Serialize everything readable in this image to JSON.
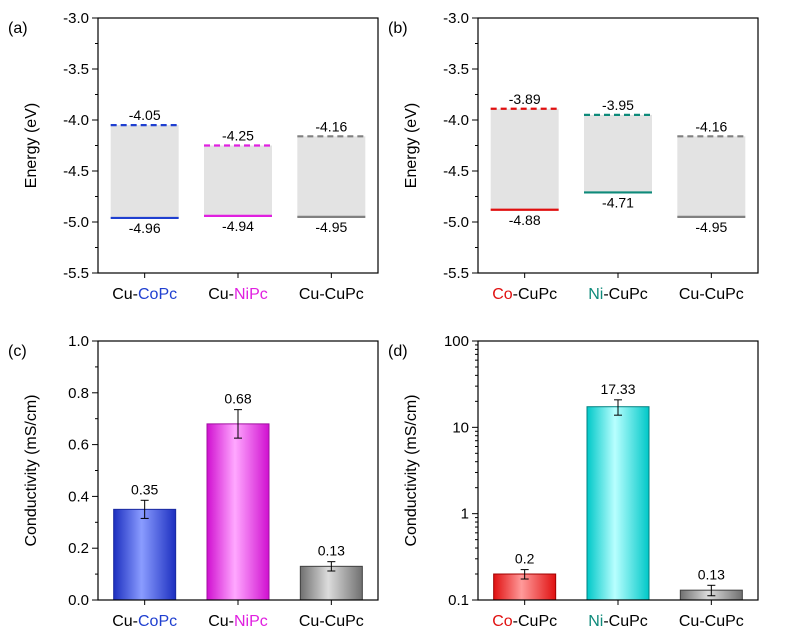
{
  "chart_data": [
    {
      "panel": "(a)",
      "type": "energy-level",
      "ylabel": "Energy (eV)",
      "ylim": [
        -5.5,
        -3.0
      ],
      "yticks": [
        "-3.0",
        "-3.5",
        "-4.0",
        "-4.5",
        "-5.0",
        "-5.5"
      ],
      "categories": [
        {
          "prefix": "Cu-",
          "highlight": "CoPc",
          "suffix": "",
          "color": "#1f3fd0"
        },
        {
          "prefix": "Cu-",
          "highlight": "NiPc",
          "suffix": "",
          "color": "#e020e0"
        },
        {
          "prefix": "Cu-CuPc",
          "highlight": "",
          "suffix": "",
          "color": "#808080"
        }
      ],
      "top": [
        -4.05,
        -4.25,
        -4.16
      ],
      "bottom": [
        -4.96,
        -4.94,
        -4.95
      ],
      "top_labels": [
        "-4.05",
        "-4.25",
        "-4.16"
      ],
      "bottom_labels": [
        "-4.96",
        "-4.94",
        "-4.95"
      ]
    },
    {
      "panel": "(b)",
      "type": "energy-level",
      "ylabel": "Energy (eV)",
      "ylim": [
        -5.5,
        -3.0
      ],
      "yticks": [
        "-3.0",
        "-3.5",
        "-4.0",
        "-4.5",
        "-5.0",
        "-5.5"
      ],
      "categories": [
        {
          "prefix": "",
          "highlight": "Co",
          "suffix": "-CuPc",
          "color": "#e01010"
        },
        {
          "prefix": "",
          "highlight": "Ni",
          "suffix": "-CuPc",
          "color": "#0e8a7a"
        },
        {
          "prefix": "Cu-CuPc",
          "highlight": "",
          "suffix": "",
          "color": "#808080"
        }
      ],
      "top": [
        -3.89,
        -3.95,
        -4.16
      ],
      "bottom": [
        -4.88,
        -4.71,
        -4.95
      ],
      "top_labels": [
        "-3.89",
        "-3.95",
        "-4.16"
      ],
      "bottom_labels": [
        "-4.88",
        "-4.71",
        "-4.95"
      ]
    },
    {
      "panel": "(c)",
      "type": "bar",
      "ylabel": "Conductivity (mS/cm)",
      "ylim": [
        0.0,
        1.0
      ],
      "yticks": [
        "0.0",
        "0.2",
        "0.4",
        "0.6",
        "0.8",
        "1.0"
      ],
      "categories": [
        {
          "prefix": "Cu-",
          "highlight": "CoPc",
          "suffix": "",
          "color": "#1f3fd0"
        },
        {
          "prefix": "Cu-",
          "highlight": "NiPc",
          "suffix": "",
          "color": "#e020e0"
        },
        {
          "prefix": "Cu-CuPc",
          "highlight": "",
          "suffix": "",
          "color": "#808080"
        }
      ],
      "values": [
        0.35,
        0.68,
        0.13
      ],
      "errors": [
        0.035,
        0.055,
        0.018
      ],
      "value_labels": [
        "0.35",
        "0.68",
        "0.13"
      ]
    },
    {
      "panel": "(d)",
      "type": "bar",
      "scale": "log",
      "ylabel": "Conductivity (mS/cm)",
      "ylim": [
        0.1,
        100
      ],
      "yticks": [
        "100",
        "10",
        "1",
        "0.1"
      ],
      "categories": [
        {
          "prefix": "",
          "highlight": "Co",
          "suffix": "-CuPc",
          "color": "#e01010"
        },
        {
          "prefix": "",
          "highlight": "Ni",
          "suffix": "-CuPc",
          "color": "#0e8a7a"
        },
        {
          "prefix": "Cu-CuPc",
          "highlight": "",
          "suffix": "",
          "color": "#808080"
        }
      ],
      "values": [
        0.2,
        17.33,
        0.13
      ],
      "errors": [
        0.025,
        3.5,
        0.018
      ],
      "value_labels": [
        "0.2",
        "17.33",
        "0.13"
      ]
    }
  ]
}
